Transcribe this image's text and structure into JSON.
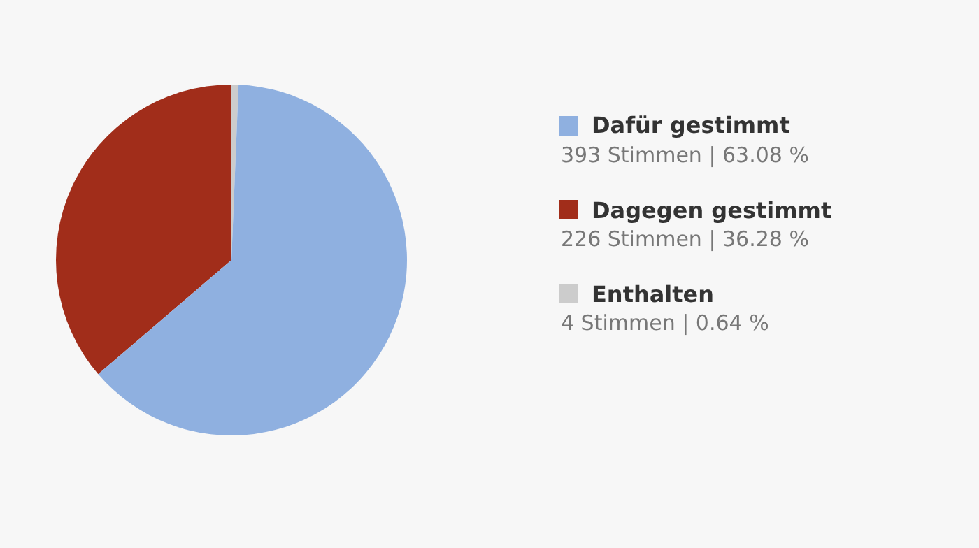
{
  "chart_data": {
    "type": "pie",
    "categories": [
      "Dafür gestimmt",
      "Dagegen gestimmt",
      "Enthalten"
    ],
    "values": [
      393,
      226,
      4
    ],
    "colors": [
      "#8fb0e0",
      "#a12d1a",
      "#cccccc"
    ],
    "value_labels": [
      "393 Stimmen | 63.08 %",
      "226 Stimmen | 36.28 %",
      "4 Stimmen | 0.64 %"
    ],
    "legend": "right"
  }
}
